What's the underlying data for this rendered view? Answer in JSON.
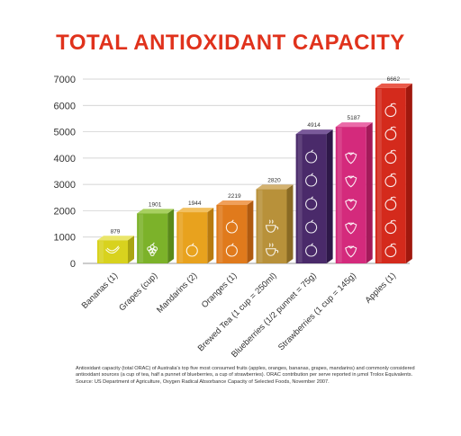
{
  "title": "TOTAL ANTIOXIDANT CAPACITY",
  "footnote": "Antioxidant capacity (total ORAC) of Australia's top five most consumed fruits (apples, oranges, bananas, grapes, mandarins) and commonly considered antioxidant sources (a cup of tea, half a punnet of blueberries, a cup of strawberries). ORAC contribution per serve reported in μmol Trolox Equivalents. Source: US Department of Agriculture, Oxygen Radical Absorbance Capacity of Selected Foods, November 2007.",
  "chart_data": {
    "type": "bar",
    "title": "TOTAL ANTIOXIDANT CAPACITY",
    "xlabel": "",
    "ylabel": "",
    "ylim": [
      0,
      7000
    ],
    "yticks": [
      0,
      1000,
      2000,
      3000,
      4000,
      5000,
      6000,
      7000
    ],
    "ytick_labels": [
      "0",
      "1000",
      "2000",
      "3000",
      "4000",
      "5000",
      "6000",
      "7000"
    ],
    "grid": true,
    "categories": [
      "Bananas (1)",
      "Grapes (cup)",
      "Mandarins (2)",
      "Oranges (1)",
      "Brewed Tea (1 cup = 250ml)",
      "Blueberries (1/2 punnet = 75g)",
      "Strawberries (1 cup = 145g)",
      "Apples (1)"
    ],
    "values": [
      879,
      1901,
      1944,
      2219,
      2820,
      4914,
      5187,
      6662
    ],
    "value_labels": [
      "879",
      "1901",
      "1944",
      "2219",
      "2820",
      "4914",
      "5187",
      "6662"
    ],
    "colors": {
      "title": "#e0321c",
      "bars": [
        "#d8d21e",
        "#7cb22a",
        "#e8a21e",
        "#e07a1c",
        "#b8913a",
        "#4a2a6a",
        "#d42a7c",
        "#d42a1c"
      ],
      "bar_sides": [
        "#aaa512",
        "#5a8a1a",
        "#b87a10",
        "#b05a10",
        "#8a6a24",
        "#2e1848",
        "#a41a5a",
        "#a0180e"
      ],
      "bar_tops": [
        "#eae56a",
        "#a8d060",
        "#f2c060",
        "#f0a05a",
        "#d4b270",
        "#7a5a9a",
        "#ea6aa8",
        "#ea5a4a"
      ]
    },
    "icons": [
      "banana-icon",
      "grape-icon",
      "mandarin-icon",
      "orange-icon",
      "teacup-icon",
      "blueberry-icon",
      "strawberry-icon",
      "apple-icon"
    ]
  }
}
